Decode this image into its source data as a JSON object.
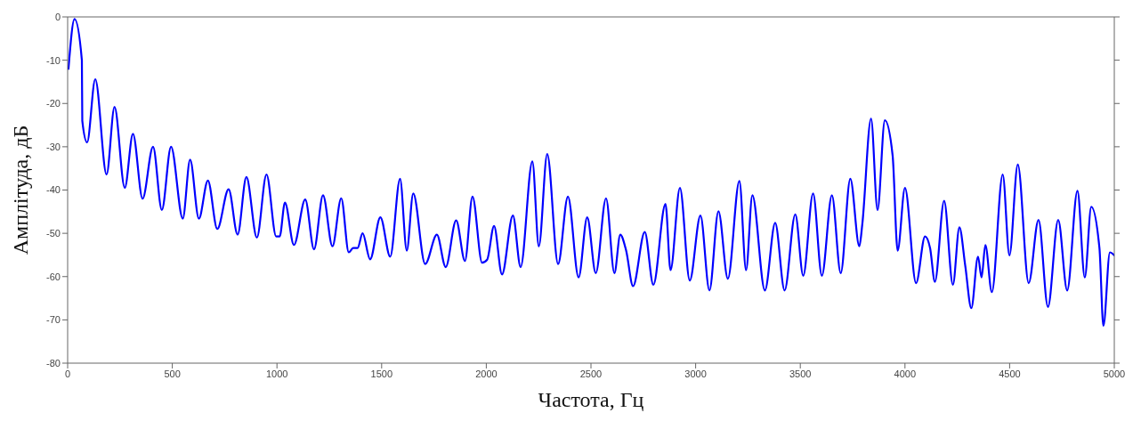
{
  "chart_data": {
    "type": "line",
    "xlabel": "Частота, Гц",
    "ylabel": "Амплітуда, дБ",
    "xlim": [
      0,
      5000
    ],
    "xticks": [
      0,
      500,
      1000,
      1500,
      2000,
      2500,
      3000,
      3500,
      4000,
      4500,
      5000
    ],
    "ylim": [
      -80,
      0
    ],
    "yticks": [
      -80,
      -70,
      -60,
      -50,
      -40,
      -30,
      -20,
      -10,
      0
    ],
    "grid": false,
    "marker": "none",
    "line_style": "solid",
    "series": [
      {
        "color": "#0000ff",
        "x": [
          4,
          33,
          68,
          70,
          93,
          132,
          186,
          224,
          273,
          312,
          358,
          408,
          450,
          494,
          550,
          585,
          627,
          670,
          715,
          769,
          812,
          854,
          904,
          950,
          996,
          1013,
          1038,
          1081,
          1135,
          1177,
          1220,
          1265,
          1307,
          1343,
          1364,
          1385,
          1409,
          1445,
          1494,
          1541,
          1588,
          1620,
          1651,
          1708,
          1764,
          1806,
          1856,
          1898,
          1934,
          1980,
          2004,
          2037,
          2075,
          2127,
          2164,
          2220,
          2251,
          2291,
          2343,
          2390,
          2441,
          2482,
          2523,
          2572,
          2612,
          2640,
          2668,
          2701,
          2757,
          2798,
          2856,
          2880,
          2925,
          2972,
          3023,
          3066,
          3109,
          3154,
          3209,
          3241,
          3271,
          3331,
          3380,
          3425,
          3476,
          3514,
          3561,
          3603,
          3651,
          3693,
          3739,
          3782,
          3796,
          3838,
          3869,
          3904,
          3941,
          3965,
          4000,
          4053,
          4096,
          4120,
          4143,
          4187,
          4229,
          4260,
          4288,
          4317,
          4349,
          4366,
          4384,
          4415,
          4467,
          4499,
          4539,
          4591,
          4638,
          4683,
          4732,
          4775,
          4824,
          4859,
          4890,
          4929,
          4948,
          4979,
          5000
        ],
        "values": [
          -12,
          -0.5,
          -10,
          -24,
          -29,
          -14.4,
          -36.4,
          -20.8,
          -39.5,
          -27,
          -42,
          -30,
          -44.6,
          -30,
          -46.6,
          -33,
          -46.6,
          -37.8,
          -49,
          -39.8,
          -50.3,
          -37,
          -51,
          -36.4,
          -50.7,
          -50.7,
          -42.9,
          -52.7,
          -42.2,
          -53.7,
          -41.2,
          -53,
          -41.9,
          -54.4,
          -53.4,
          -53.4,
          -50,
          -56,
          -46.3,
          -55.4,
          -37.4,
          -54,
          -40.8,
          -57.1,
          -50.3,
          -57.8,
          -47,
          -56.4,
          -41.5,
          -56.8,
          -56.1,
          -48.3,
          -59.5,
          -45.9,
          -57.8,
          -33.4,
          -53,
          -31.7,
          -57.1,
          -41.5,
          -60.2,
          -46.3,
          -59.2,
          -41.9,
          -59.2,
          -50.3,
          -54,
          -62.2,
          -49.7,
          -61.9,
          -43.2,
          -58.5,
          -39.5,
          -60.9,
          -45.9,
          -63.2,
          -44.9,
          -60.5,
          -37.9,
          -58.5,
          -41.2,
          -63.2,
          -47.6,
          -63.2,
          -45.6,
          -59.8,
          -40.8,
          -59.8,
          -41.2,
          -59.2,
          -37.4,
          -53,
          -48,
          -23.5,
          -44.6,
          -23.9,
          -32,
          -54,
          -39.5,
          -61.5,
          -50.7,
          -53.4,
          -61.2,
          -42.5,
          -61.9,
          -48.6,
          -57.5,
          -67.3,
          -55.4,
          -60.2,
          -52.7,
          -63.6,
          -36.4,
          -55.1,
          -34.1,
          -61.5,
          -46.9,
          -67,
          -46.9,
          -63.2,
          -40.2,
          -60.2,
          -43.9,
          -53.4,
          -71.4,
          -54.4,
          -55.1
        ]
      }
    ]
  }
}
